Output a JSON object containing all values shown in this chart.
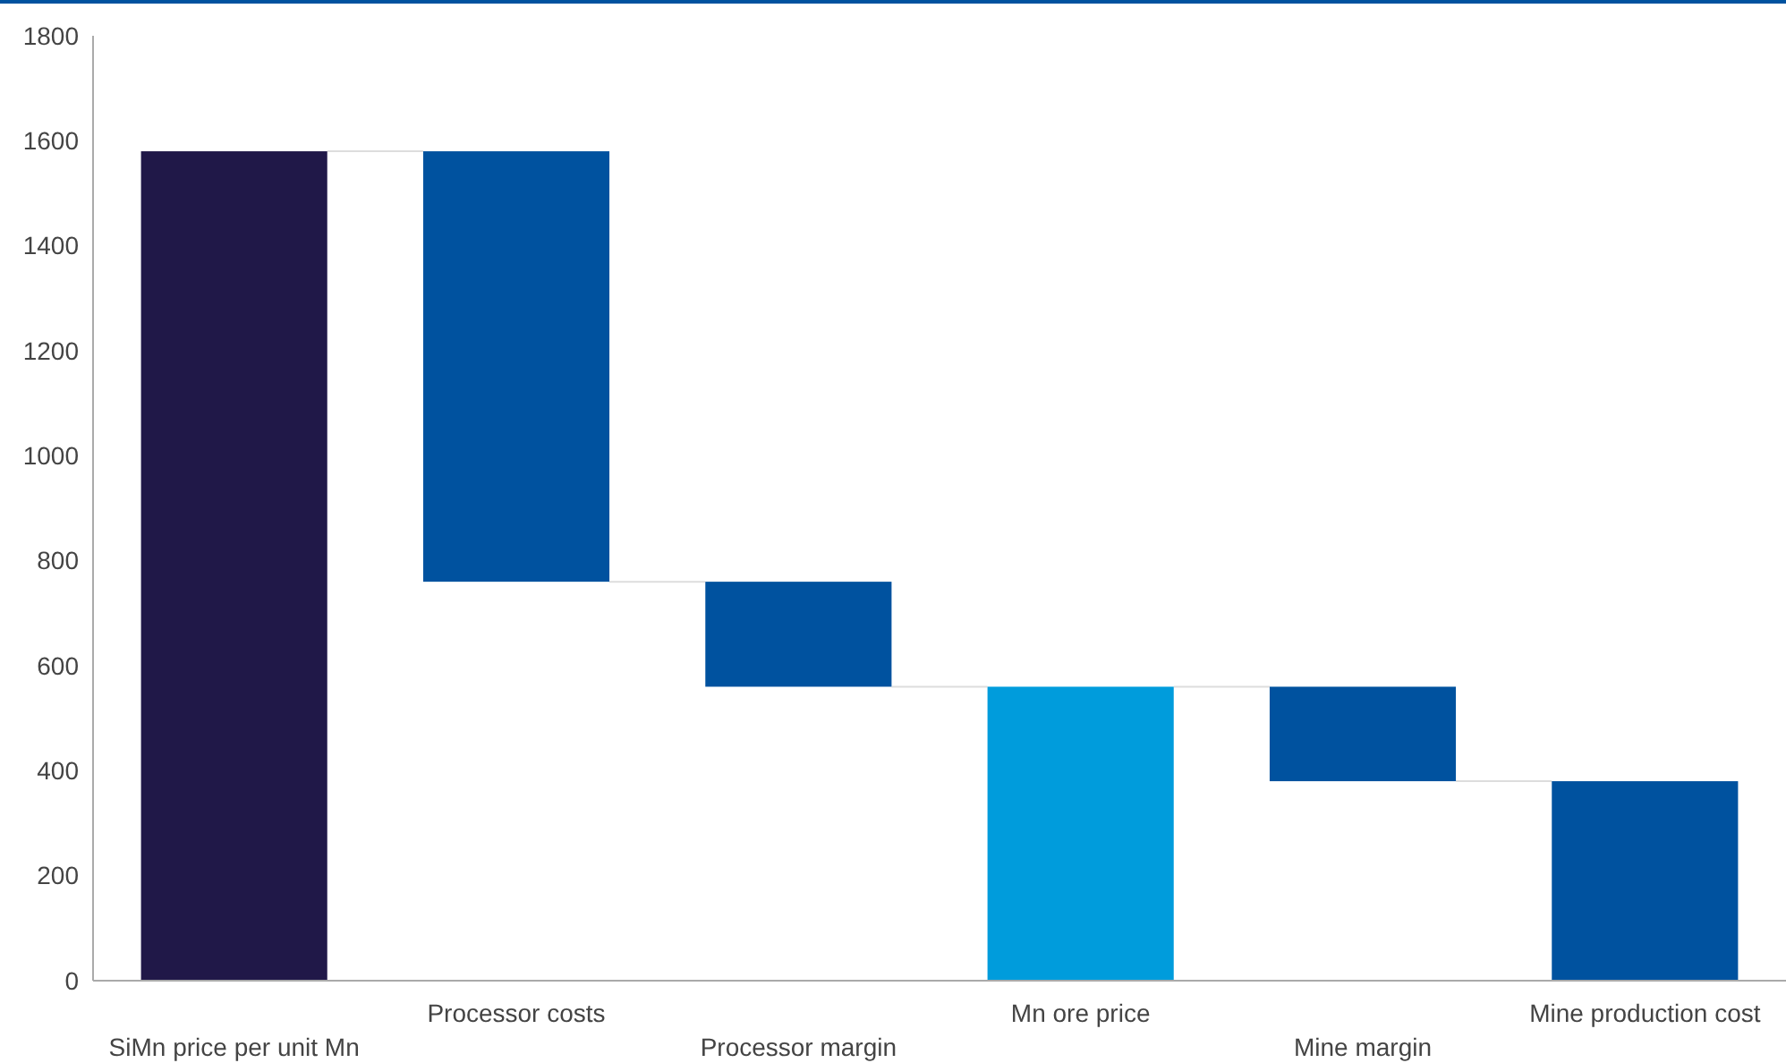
{
  "chart_data": {
    "type": "bar",
    "categories": [
      "SiMn price per unit Mn",
      "Processor costs",
      "Processor margin",
      "Mn ore price",
      "Mine margin",
      "Mine production cost"
    ],
    "values": [
      1580,
      820,
      200,
      560,
      180,
      380
    ],
    "base": [
      0,
      760,
      560,
      0,
      380,
      0
    ],
    "colors": [
      "#201848",
      "#00529f",
      "#00529f",
      "#009cdc",
      "#00529f",
      "#00529f"
    ],
    "ylim": [
      0,
      1800
    ],
    "yticks": [
      0,
      200,
      400,
      600,
      800,
      1000,
      1200,
      1400,
      1600,
      1800
    ],
    "grid": false
  }
}
